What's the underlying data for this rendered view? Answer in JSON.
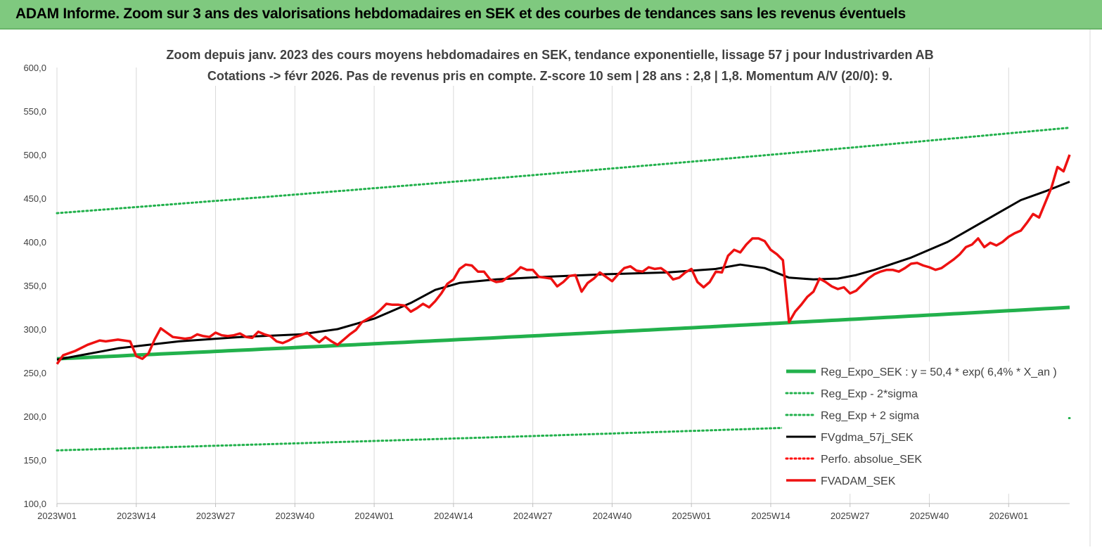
{
  "header": {
    "title": "ADAM Informe. Zoom sur 3 ans des valorisations hebdomadaires en SEK et des courbes de tendances sans les revenus éventuels"
  },
  "chart_data": {
    "type": "line",
    "title_line1": "Zoom depuis janv. 2023 des cours moyens hebdomadaires en SEK, tendance exponentielle, lissage 57 j pour Industrivarden AB",
    "title_line2": "Cotations -> févr 2026. Pas de revenus pris en compte. Z-score 10 sem | 28 ans : 2,8 | 1,8. Momentum A/V (20/0): 9.",
    "ylim": [
      100,
      600
    ],
    "yticks": [
      "100,0",
      "150,0",
      "200,0",
      "250,0",
      "300,0",
      "350,0",
      "400,0",
      "450,0",
      "500,0",
      "550,0",
      "600,0"
    ],
    "xticks": [
      "2023W01",
      "2023W14",
      "2023W27",
      "2023W40",
      "2024W01",
      "2024W14",
      "2024W27",
      "2024W40",
      "2025W01",
      "2025W14",
      "2025W27",
      "2025W40",
      "2026W01"
    ],
    "n_weeks": 167,
    "grid": "vertical",
    "legend_position": "bottom-right",
    "series": [
      {
        "key": "reg",
        "name": "Reg_Expo_SEK : y = 50,4 * exp( 6,4% *  X_an )",
        "color": "#22b14c",
        "style": "solid-thick",
        "x": [
          0,
          166
        ],
        "values": [
          266,
          325
        ]
      },
      {
        "key": "lower",
        "name": "Reg_Exp - 2*sigma",
        "color": "#22b14c",
        "style": "dotted",
        "x": [
          0,
          166
        ],
        "values": [
          161,
          198
        ]
      },
      {
        "key": "upper",
        "name": "Reg_Exp + 2 sigma",
        "color": "#22b14c",
        "style": "dotted",
        "x": [
          0,
          166
        ],
        "values": [
          433,
          531
        ]
      },
      {
        "key": "fvgdma",
        "name": "FVgdma_57j_SEK",
        "color": "#000000",
        "style": "solid",
        "x": [
          0,
          10,
          20,
          30,
          40,
          46,
          52,
          58,
          62,
          66,
          72,
          80,
          90,
          100,
          108,
          112,
          116,
          120,
          124,
          128,
          131,
          134,
          140,
          146,
          150,
          154,
          158,
          162,
          166
        ],
        "values": [
          265,
          278,
          286,
          291,
          294,
          300,
          312,
          330,
          345,
          353,
          357,
          360,
          363,
          365,
          369,
          374,
          370,
          359,
          357,
          358,
          362,
          368,
          382,
          400,
          416,
          432,
          448,
          458,
          469
        ]
      },
      {
        "key": "perfo",
        "name": "Perfo. absolue_SEK",
        "color": "#ff0000",
        "style": "dotted",
        "x": [],
        "values": []
      },
      {
        "key": "fvadam",
        "name": "FVADAM_SEK",
        "color": "#ee1111",
        "style": "solid-thick",
        "x": [
          0,
          1,
          3,
          5,
          7,
          8,
          10,
          12,
          13,
          14,
          15,
          16,
          17,
          18,
          19,
          20,
          21,
          22,
          23,
          24,
          25,
          26,
          27,
          28,
          29,
          30,
          31,
          32,
          33,
          34,
          35,
          36,
          37,
          38,
          39,
          40,
          41,
          42,
          43,
          44,
          45,
          46,
          47,
          48,
          49,
          50,
          51,
          52,
          53,
          54,
          55,
          56,
          57,
          58,
          59,
          60,
          61,
          62,
          63,
          64,
          65,
          66,
          67,
          68,
          69,
          70,
          71,
          72,
          73,
          74,
          75,
          76,
          77,
          78,
          79,
          80,
          81,
          82,
          83,
          84,
          85,
          86,
          87,
          88,
          89,
          90,
          91,
          92,
          93,
          94,
          95,
          96,
          97,
          98,
          99,
          100,
          101,
          102,
          103,
          104,
          105,
          106,
          107,
          108,
          109,
          110,
          111,
          112,
          113,
          114,
          115,
          116,
          117,
          118,
          119,
          120,
          121,
          122,
          123,
          124,
          125,
          126,
          127,
          128,
          129,
          130,
          131,
          132,
          133,
          134,
          135,
          136,
          137,
          138,
          139,
          140,
          141,
          142,
          143,
          144,
          145,
          146,
          147,
          148,
          149,
          150,
          151,
          152,
          153,
          154,
          155,
          156,
          157,
          158,
          159,
          160,
          161,
          162,
          163,
          164,
          165,
          166
        ],
        "values": [
          260,
          270,
          275,
          282,
          287,
          286,
          288,
          286,
          269,
          266,
          272,
          288,
          301,
          296,
          291,
          290,
          289,
          290,
          294,
          292,
          291,
          296,
          293,
          292,
          293,
          295,
          291,
          290,
          297,
          294,
          292,
          286,
          284,
          287,
          291,
          293,
          296,
          290,
          285,
          291,
          286,
          282,
          288,
          294,
          299,
          308,
          312,
          316,
          322,
          329,
          328,
          328,
          327,
          320,
          324,
          329,
          325,
          332,
          341,
          352,
          357,
          369,
          374,
          373,
          366,
          366,
          357,
          354,
          355,
          360,
          364,
          371,
          368,
          368,
          360,
          359,
          358,
          349,
          354,
          361,
          362,
          343,
          353,
          358,
          365,
          360,
          355,
          363,
          370,
          372,
          367,
          366,
          371,
          369,
          370,
          365,
          357,
          359,
          365,
          369,
          354,
          348,
          354,
          366,
          365,
          384,
          391,
          388,
          397,
          404,
          404,
          401,
          391,
          386,
          379,
          308,
          320,
          328,
          337,
          343,
          358,
          354,
          349,
          346,
          348,
          341,
          344,
          351,
          358,
          363,
          366,
          368,
          368,
          366,
          370,
          375,
          376,
          373,
          371,
          368,
          370,
          375,
          380,
          386,
          394,
          397,
          404,
          394,
          399,
          396,
          400,
          406,
          410,
          413,
          422,
          432,
          428,
          445,
          462,
          486,
          481,
          500
        ]
      }
    ]
  }
}
